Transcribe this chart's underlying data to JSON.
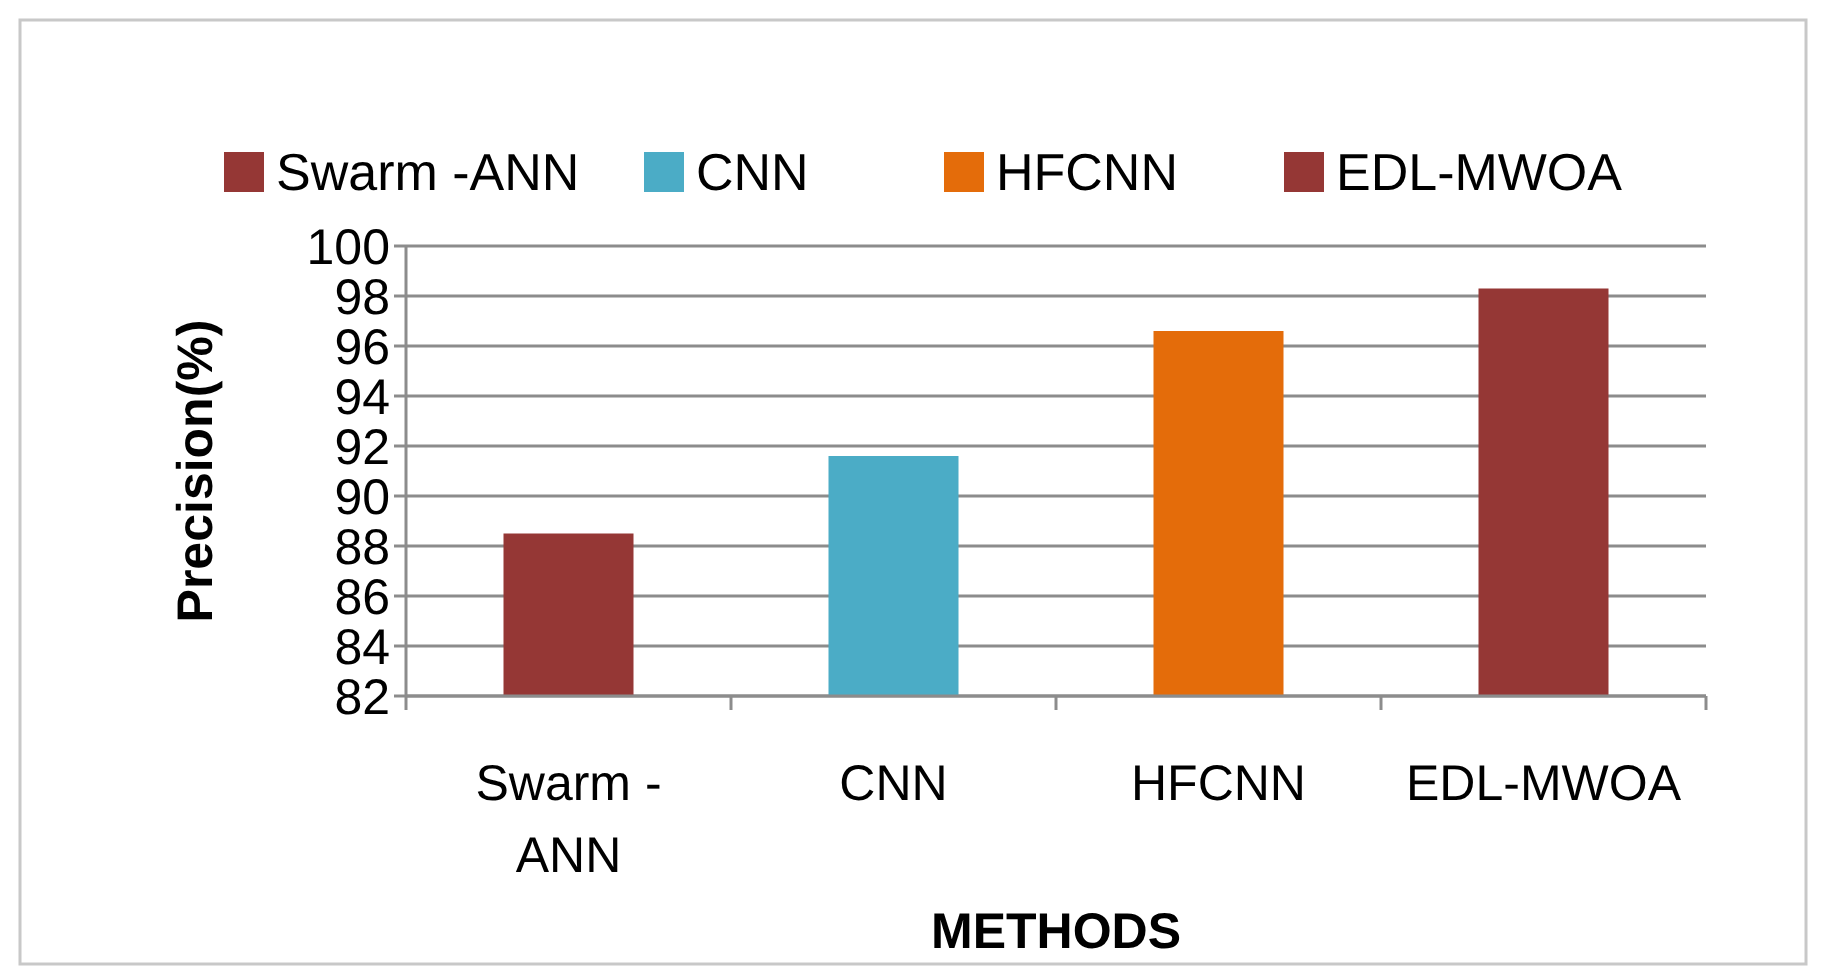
{
  "chart_data": {
    "type": "bar",
    "xlabel": "METHODS",
    "ylabel": "Precision(%)",
    "categories": [
      "Swarm - ANN",
      "CNN",
      "HFCNN",
      "EDL-MWOA"
    ],
    "series": [
      {
        "name": "Swarm -ANN",
        "color": "#953735",
        "values": [
          88.5,
          null,
          null,
          null
        ]
      },
      {
        "name": "CNN",
        "color": "#4bacc6",
        "values": [
          null,
          91.6,
          null,
          null
        ]
      },
      {
        "name": "HFCNN",
        "color": "#e46c0a",
        "values": [
          null,
          null,
          96.6,
          null
        ]
      },
      {
        "name": "EDL-MWOA",
        "color": "#953735",
        "values": [
          null,
          null,
          null,
          98.3
        ]
      }
    ],
    "ylim": [
      82,
      100
    ],
    "yticks": [
      82,
      84,
      86,
      88,
      90,
      92,
      94,
      96,
      98,
      100
    ],
    "grid": "y",
    "legend": "top"
  }
}
